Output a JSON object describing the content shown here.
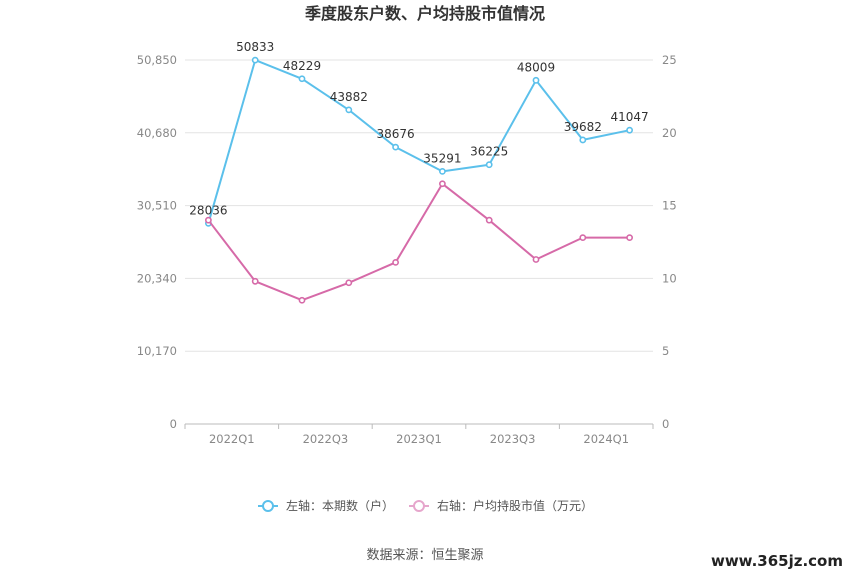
{
  "chart_data": {
    "type": "line",
    "title": "季度股东户数、户均持股市值情况",
    "x": [
      "2022Q1",
      "2022Q2",
      "2022Q3",
      "2022Q4",
      "2023Q1",
      "2023Q2",
      "2023Q3",
      "2023Q4",
      "2024Q1",
      "2024Q2"
    ],
    "x_tick_labels": [
      "2022Q1",
      "2022Q3",
      "2023Q1",
      "2023Q3",
      "2024Q1"
    ],
    "y_left": {
      "ticks": [
        "0",
        "10,170",
        "20,340",
        "30,510",
        "40,680",
        "50,850"
      ],
      "range": [
        0,
        50850
      ]
    },
    "y_right": {
      "ticks": [
        "0",
        "5",
        "10",
        "15",
        "20",
        "25"
      ],
      "range": [
        0,
        25
      ]
    },
    "series": [
      {
        "name": "左轴：本期数（户）",
        "axis": "left",
        "color": "#5bc0eb",
        "values": [
          28036,
          50833,
          48229,
          43882,
          38676,
          35291,
          36225,
          48009,
          39682,
          41047
        ],
        "labels": [
          "28036",
          "50833",
          "48229",
          "43882",
          "38676",
          "35291",
          "36225",
          "48009",
          "39682",
          "41047"
        ]
      },
      {
        "name": "右轴：户均持股市值（万元）",
        "axis": "right",
        "color": "#d66aa8",
        "values": [
          14.0,
          9.8,
          8.5,
          9.7,
          11.1,
          16.5,
          14.0,
          11.3,
          12.8,
          12.8
        ]
      }
    ],
    "grid": true,
    "legend_position": "bottom"
  },
  "source": "数据来源：恒生聚源",
  "watermark": "www.365jz.com"
}
